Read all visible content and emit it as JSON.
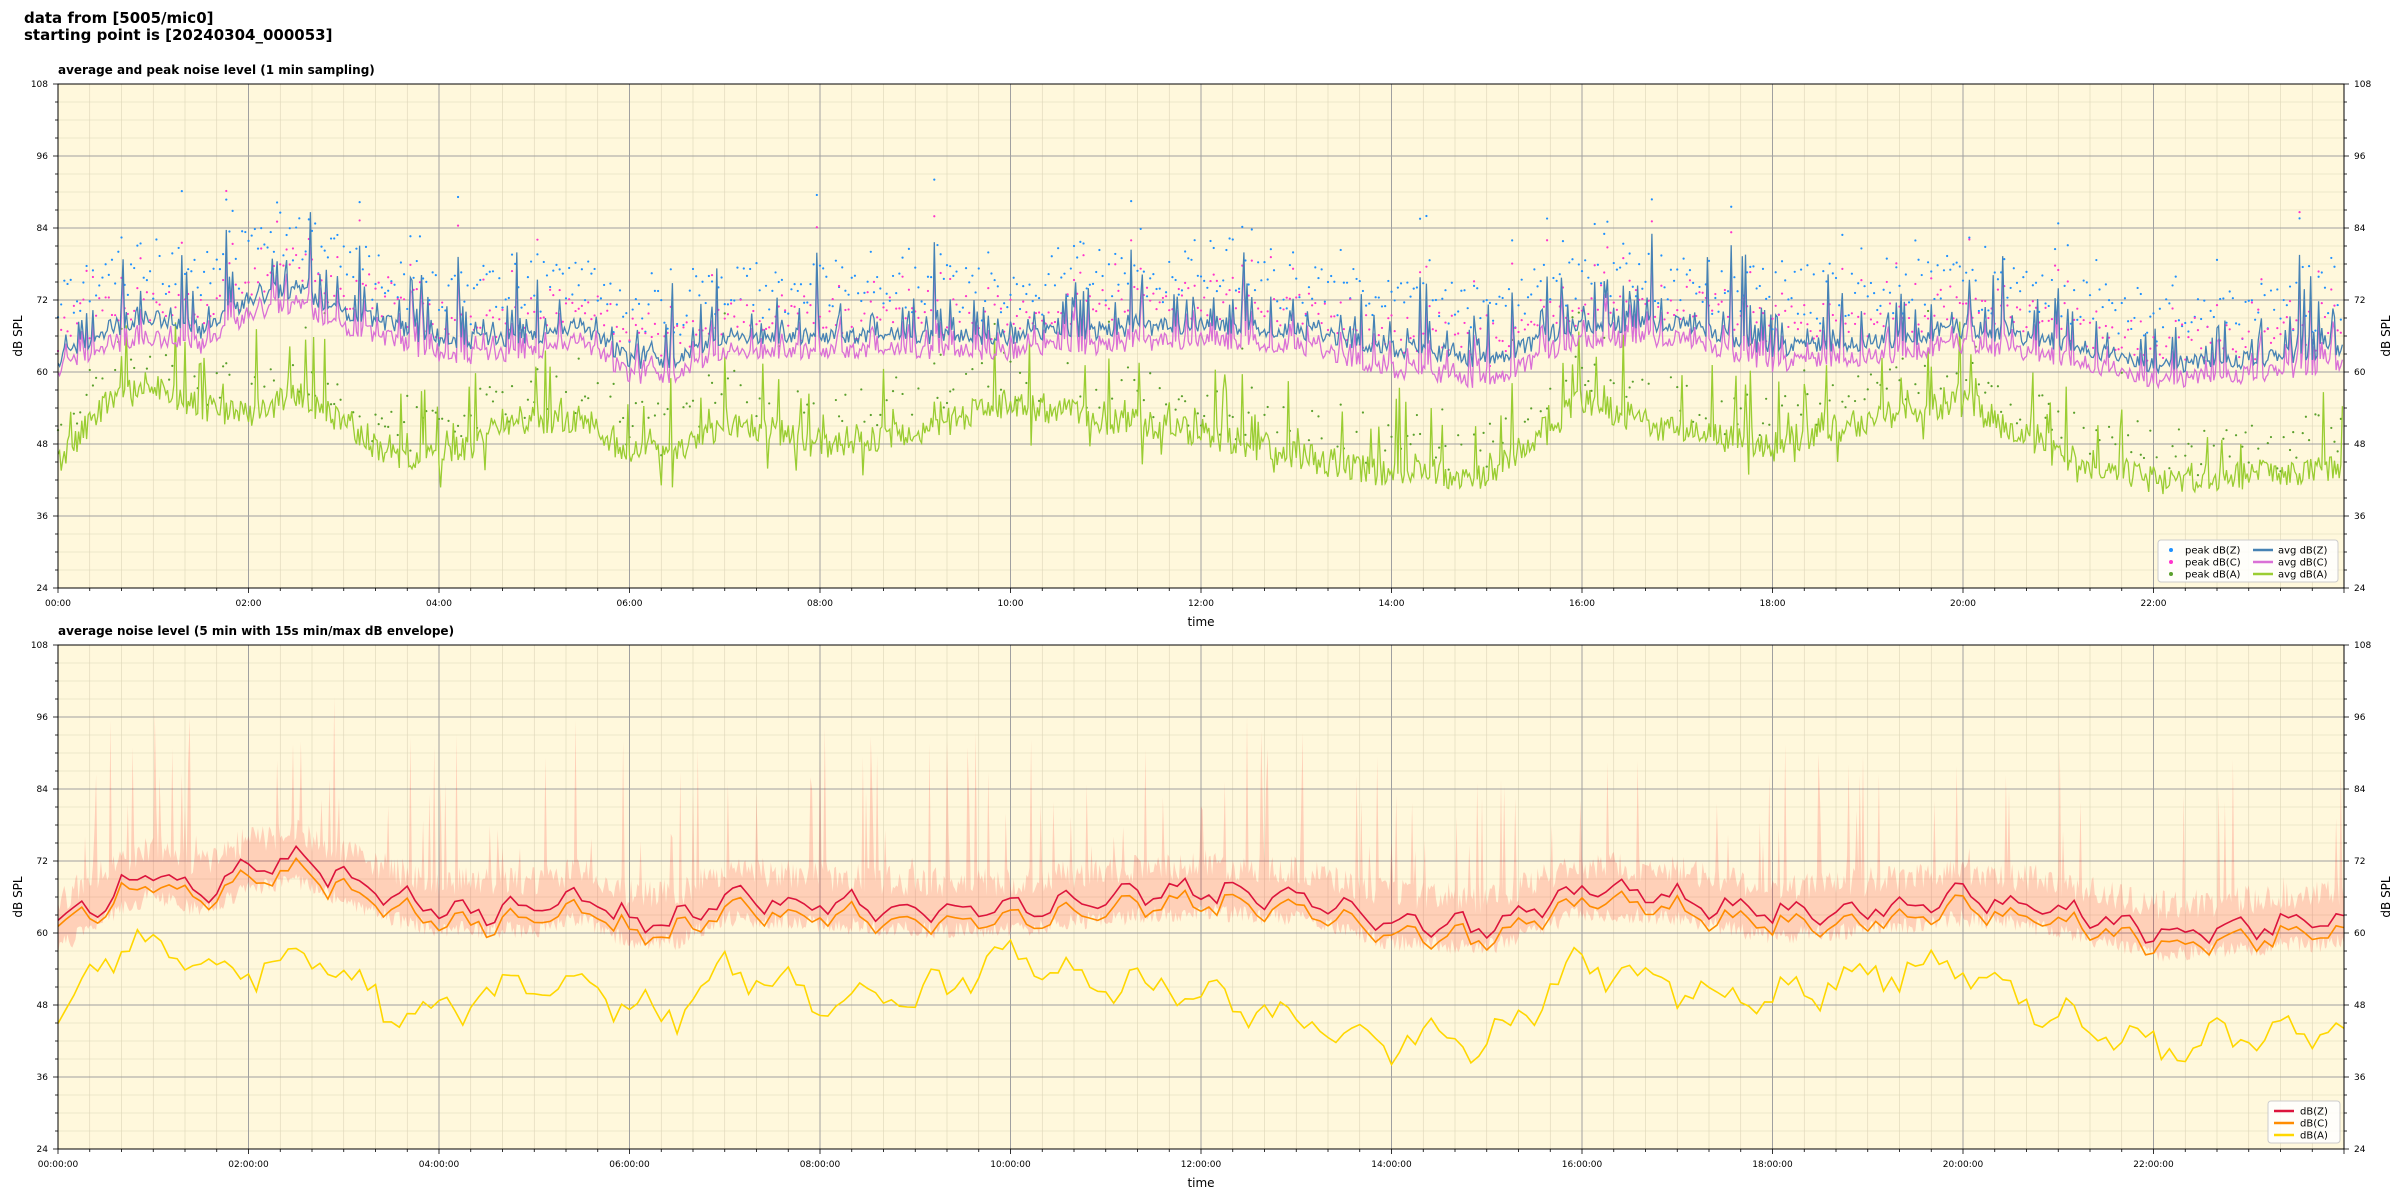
{
  "header": {
    "line1": "data from [5005/mic0]",
    "line2": "starting point is [20240304_000053]"
  },
  "colors": {
    "background": "#fff8dc",
    "grid_major": "#a0a0a0",
    "grid_minor": "#ddd5b8",
    "peak_z": "#1e90ff",
    "peak_c": "#ff33cc",
    "peak_a": "#5aa02c",
    "avg_z": "#4682b4",
    "avg_c": "#da70d6",
    "avg_a": "#9acd32",
    "env_z": "#ff0000",
    "line_z": "#dc143c",
    "line_c": "#ff8c00",
    "line_a": "#ffd700"
  },
  "chart_data": [
    {
      "type": "line",
      "title": "average and peak noise level (1 min sampling)",
      "xlabel": "time",
      "ylabel": "dB SPL",
      "ylim": [
        24,
        108
      ],
      "yticks": [
        "24",
        "36",
        "48",
        "60",
        "72",
        "84",
        "96",
        "108"
      ],
      "xlim_hours": [
        0,
        24
      ],
      "xticks": [
        "00:00",
        "02:00",
        "04:00",
        "06:00",
        "08:00",
        "10:00",
        "12:00",
        "14:00",
        "16:00",
        "18:00",
        "20:00",
        "22:00"
      ],
      "grid": true,
      "legend_position": "bottom-right",
      "legend": [
        "peak dB(Z)",
        "peak dB(C)",
        "peak dB(A)",
        "avg dB(Z)",
        "avg dB(C)",
        "avg dB(A)"
      ],
      "series_baselines": {
        "x_hours": [
          0,
          0.5,
          1.0,
          1.5,
          2.0,
          2.5,
          3.0,
          3.5,
          4.0,
          5.0,
          5.5,
          6.0,
          6.5,
          7.0,
          8.0,
          9.0,
          10.0,
          11.0,
          12.0,
          13.0,
          14.0,
          15.0,
          16.0,
          17.0,
          18.0,
          19.0,
          20.0,
          21.0,
          22.0,
          23.0,
          24.0
        ],
        "avg_z": [
          62,
          67,
          69,
          67,
          72,
          74,
          70,
          68,
          65,
          66,
          68,
          62,
          62,
          66,
          66,
          66,
          66,
          67,
          68,
          67,
          64,
          62,
          68,
          68,
          64,
          65,
          67,
          65,
          61,
          62,
          64
        ],
        "avg_c": [
          61,
          65,
          66,
          65,
          70,
          72,
          68,
          66,
          63,
          64,
          66,
          60,
          60,
          64,
          64,
          64,
          64,
          65,
          66,
          65,
          61,
          59,
          66,
          66,
          62,
          63,
          65,
          63,
          59,
          60,
          62
        ],
        "avg_a": [
          45,
          55,
          58,
          54,
          53,
          56,
          52,
          46,
          46,
          52,
          52,
          47,
          46,
          52,
          48,
          50,
          55,
          52,
          50,
          46,
          43,
          43,
          55,
          50,
          48,
          52,
          55,
          46,
          42,
          43,
          44
        ]
      }
    },
    {
      "type": "line",
      "title": "average noise level (5 min with 15s min/max dB envelope)",
      "xlabel": "time",
      "ylabel": "dB SPL",
      "ylim": [
        24,
        108
      ],
      "yticks": [
        "24",
        "36",
        "48",
        "60",
        "72",
        "84",
        "96",
        "108"
      ],
      "xlim_hours": [
        0,
        24
      ],
      "xticks": [
        "00:00:00",
        "02:00:00",
        "04:00:00",
        "06:00:00",
        "08:00:00",
        "10:00:00",
        "12:00:00",
        "14:00:00",
        "16:00:00",
        "18:00:00",
        "20:00:00",
        "22:00:00"
      ],
      "grid": true,
      "legend_position": "bottom-right",
      "legend": [
        "dB(Z)",
        "dB(C)",
        "dB(A)"
      ],
      "series_baselines": {
        "x_hours": [
          0,
          0.5,
          1.0,
          1.5,
          2.0,
          2.5,
          3.0,
          3.5,
          4.0,
          5.0,
          5.5,
          6.0,
          6.5,
          7.0,
          8.0,
          9.0,
          10.0,
          11.0,
          12.0,
          13.0,
          14.0,
          15.0,
          16.0,
          17.0,
          18.0,
          19.0,
          20.0,
          21.0,
          22.0,
          23.0,
          24.0
        ],
        "dbz": [
          61,
          66,
          70,
          67,
          71,
          72,
          69,
          66,
          64,
          64,
          66,
          62,
          62,
          66,
          65,
          64,
          64,
          66,
          67,
          66,
          62,
          61,
          67,
          66,
          63,
          64,
          66,
          64,
          60,
          61,
          62
        ],
        "dbc": [
          60,
          65,
          68,
          66,
          69,
          70,
          67,
          64,
          62,
          62,
          64,
          60,
          60,
          64,
          63,
          62,
          62,
          64,
          65,
          64,
          60,
          59,
          65,
          64,
          61,
          62,
          64,
          62,
          58,
          59,
          60
        ],
        "dba": [
          46,
          56,
          58,
          54,
          53,
          57,
          53,
          47,
          47,
          52,
          52,
          47,
          46,
          54,
          49,
          49,
          56,
          52,
          50,
          46,
          42,
          42,
          55,
          51,
          49,
          53,
          55,
          46,
          41,
          43,
          44
        ]
      }
    }
  ]
}
